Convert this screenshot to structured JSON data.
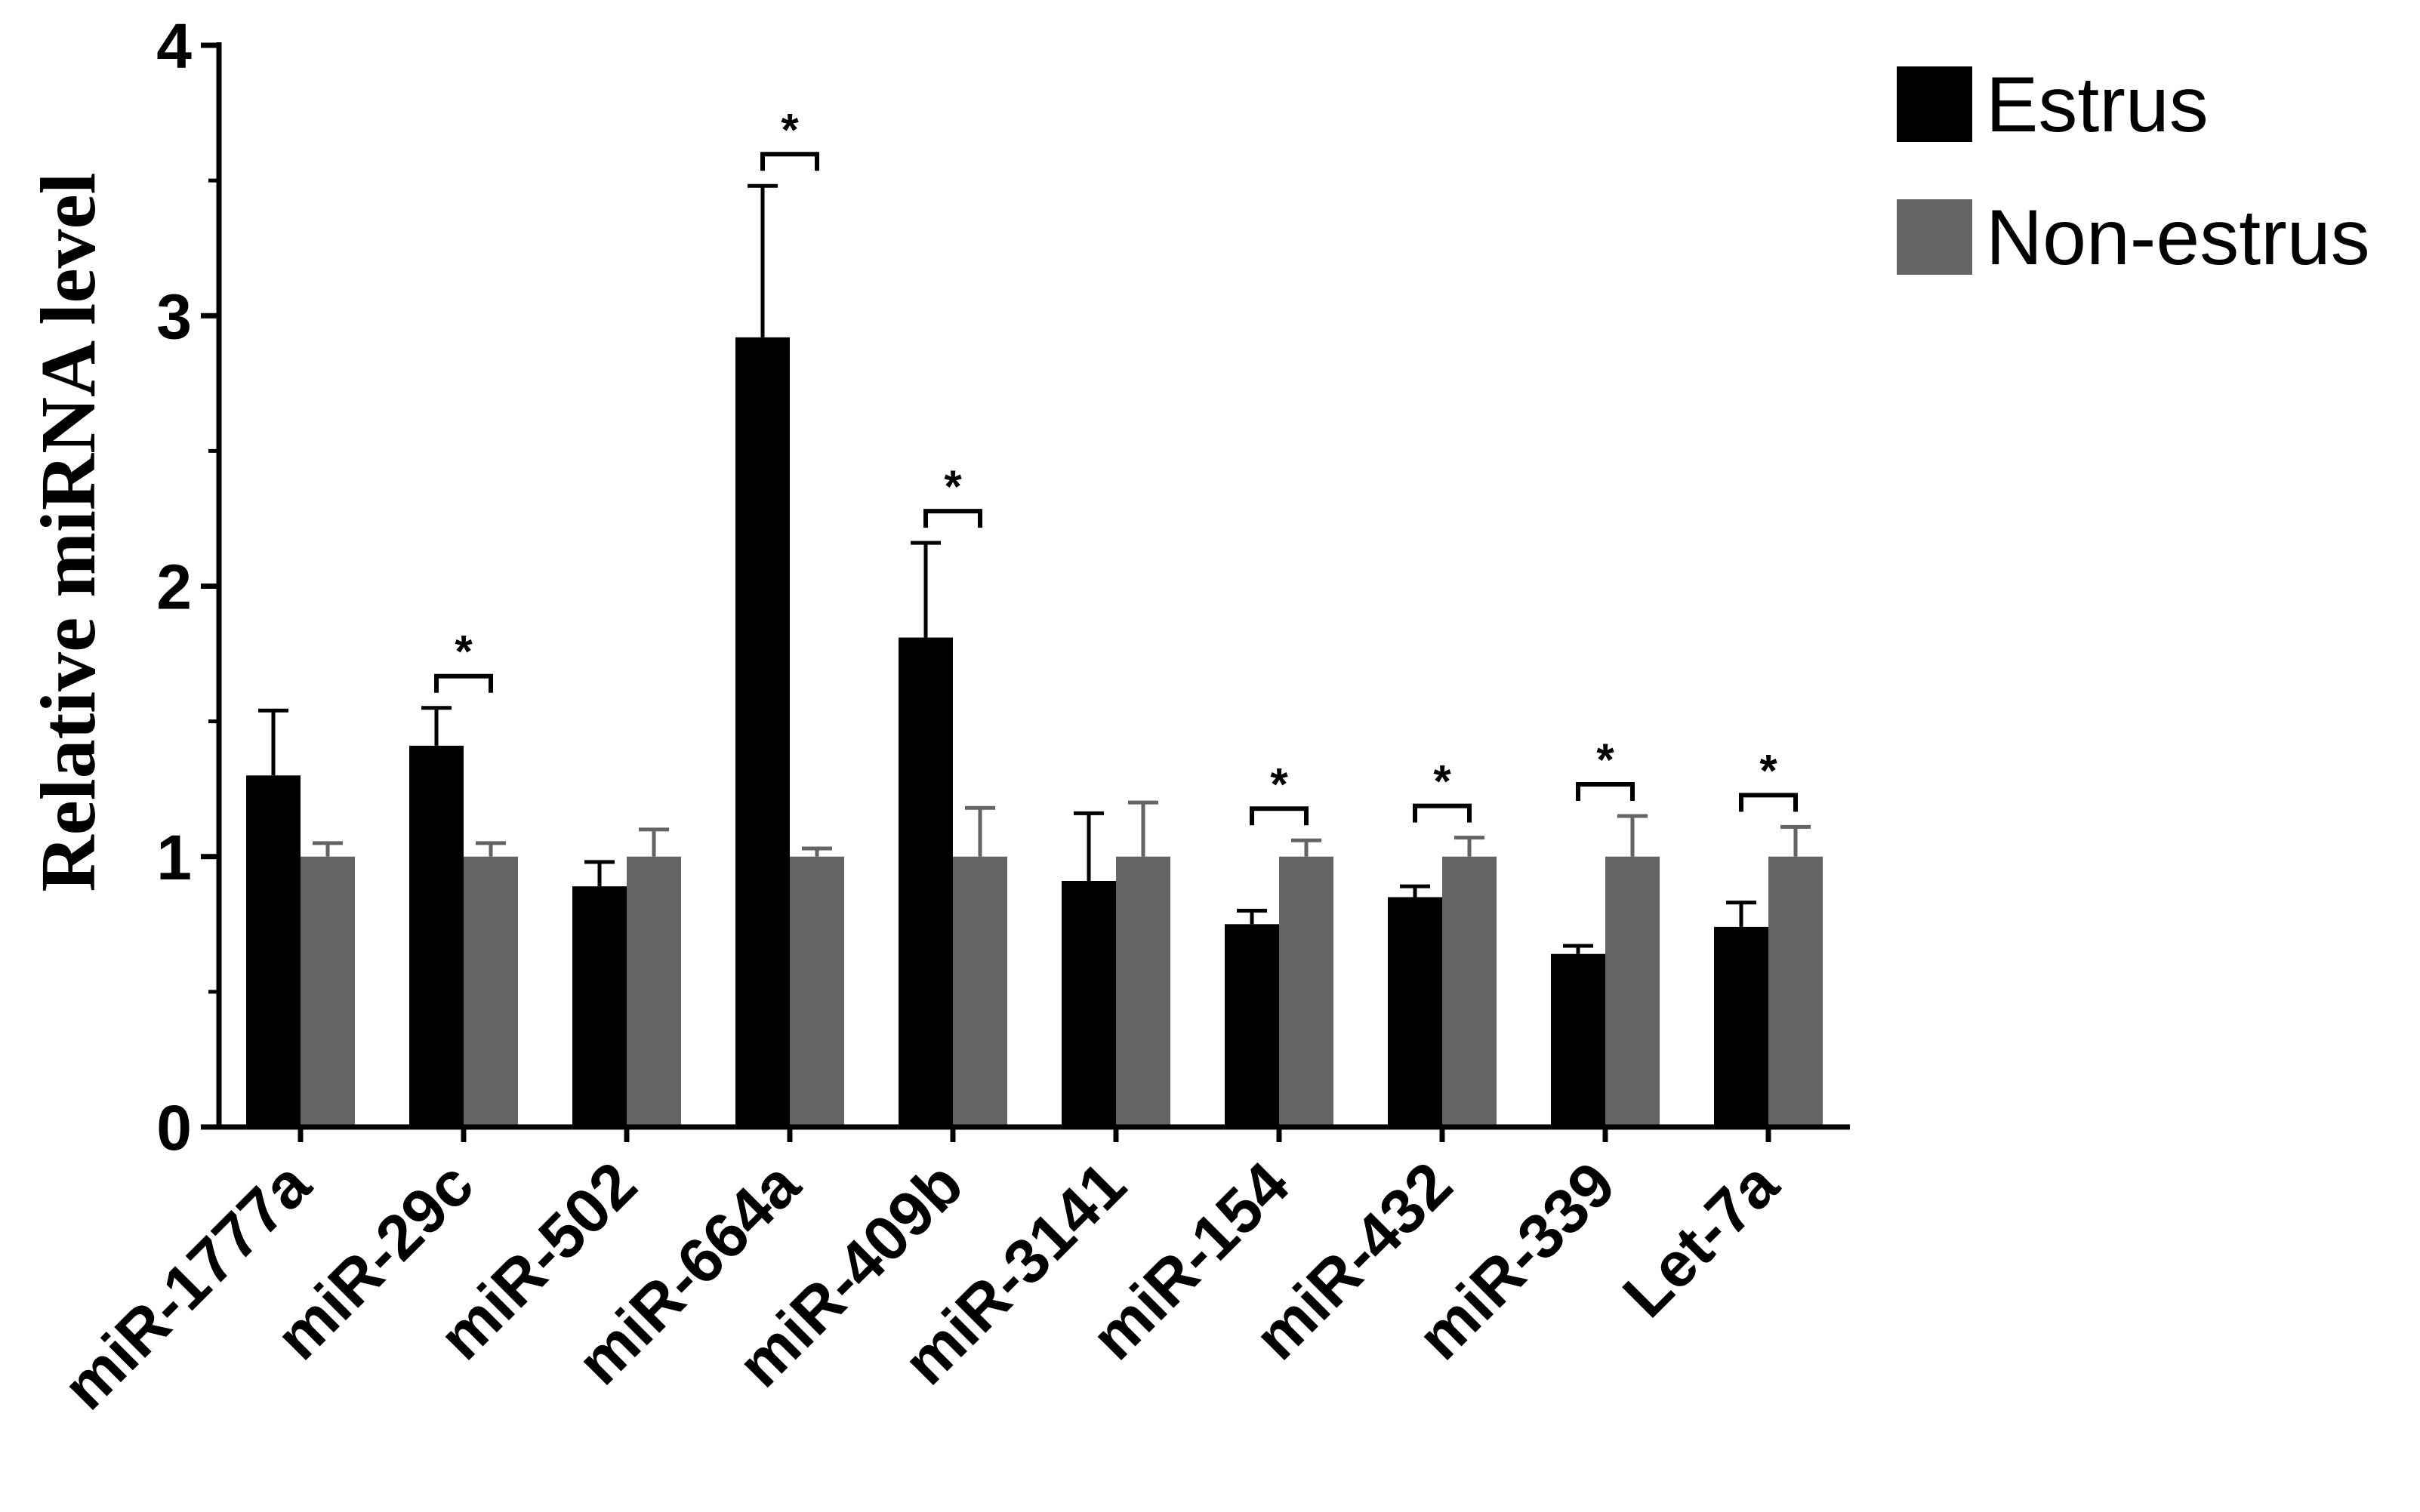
{
  "chart_data": {
    "type": "bar",
    "title": "",
    "xlabel": "",
    "ylabel": "Relative miRNA level",
    "ylim": [
      0,
      4
    ],
    "yticks": [
      0,
      1,
      2,
      3,
      4
    ],
    "grid": false,
    "legend_position": "top-right",
    "categories": [
      "miR-1777a",
      "miR-29c",
      "miR-502",
      "miR-664a",
      "miR-409b",
      "miR-3141",
      "miR-154",
      "miR-432",
      "miR-339",
      "Let-7a"
    ],
    "series": [
      {
        "name": "Estrus",
        "color": "#000000",
        "values": [
          1.3,
          1.41,
          0.89,
          2.92,
          1.81,
          0.91,
          0.75,
          0.85,
          0.64,
          0.74
        ],
        "errors": [
          0.24,
          0.14,
          0.09,
          0.56,
          0.35,
          0.25,
          0.05,
          0.04,
          0.03,
          0.09
        ]
      },
      {
        "name": "Non-estrus",
        "color": "#646464",
        "values": [
          1.0,
          1.0,
          1.0,
          1.0,
          1.0,
          1.0,
          1.0,
          1.0,
          1.0,
          1.0
        ],
        "errors": [
          0.05,
          0.05,
          0.1,
          0.03,
          0.18,
          0.2,
          0.06,
          0.07,
          0.15,
          0.11
        ]
      }
    ],
    "significance": [
      {
        "category": "miR-29c",
        "label": "*"
      },
      {
        "category": "miR-664a",
        "label": "*"
      },
      {
        "category": "miR-409b",
        "label": "*"
      },
      {
        "category": "miR-154",
        "label": "*"
      },
      {
        "category": "miR-432",
        "label": "*"
      },
      {
        "category": "miR-339",
        "label": "*"
      },
      {
        "category": "Let-7a",
        "label": "*"
      }
    ]
  }
}
